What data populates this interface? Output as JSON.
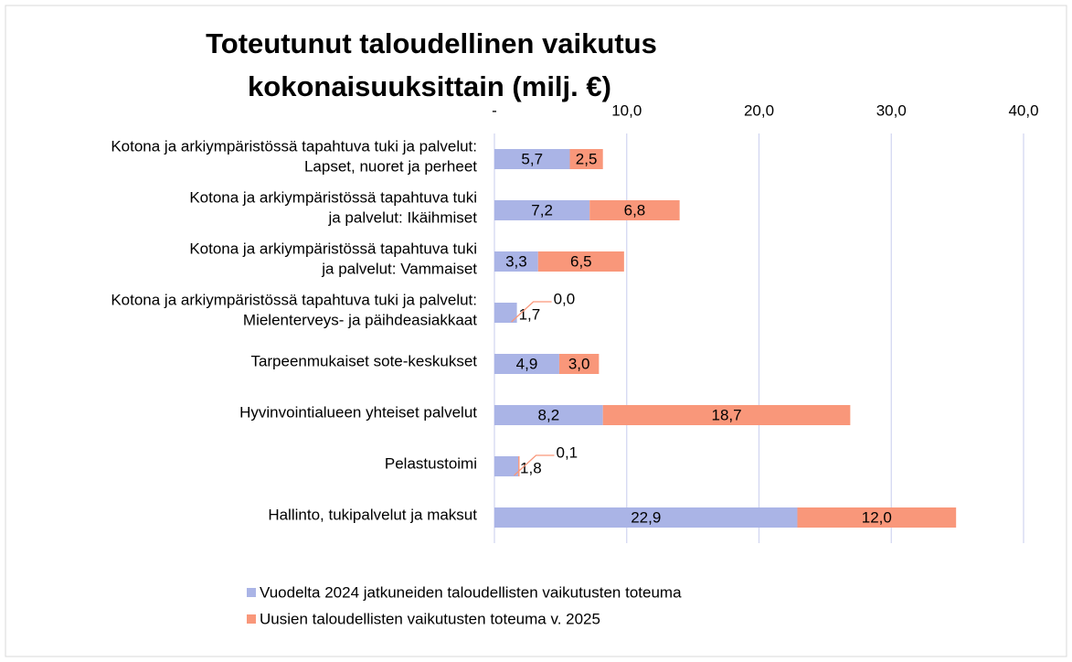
{
  "chart_data": {
    "type": "stacked_barh",
    "title": [
      "Toteutunut taloudellinen vaikutus",
      "kokonaisuuksittain (milj. €)"
    ],
    "categories": [
      [
        "Kotona ja arkiympäristössä tapahtuva tuki ja palvelut:",
        "Lapset, nuoret ja perheet"
      ],
      [
        "Kotona ja arkiympäristössä tapahtuva tuki",
        "ja palvelut: Ikäihmiset"
      ],
      [
        "Kotona ja arkiympäristössä tapahtuva tuki",
        "ja palvelut: Vammaiset"
      ],
      [
        "Kotona ja arkiympäristössä tapahtuva tuki ja palvelut:",
        "Mielenterveys- ja päihdeasiakkaat"
      ],
      [
        "Tarpeenmukaiset sote-keskukset"
      ],
      [
        "Hyvinvointialueen yhteiset palvelut"
      ],
      [
        "Pelastustoimi"
      ],
      [
        "Hallinto, tukipalvelut ja maksut"
      ]
    ],
    "series": [
      {
        "name": "Vuodelta 2024 jatkuneiden taloudellisten vaikutusten toteuma",
        "color": "#aab4e6",
        "values": [
          5.7,
          7.2,
          3.3,
          1.7,
          4.9,
          8.2,
          1.8,
          22.9
        ],
        "value_labels": [
          "5,7",
          "7,2",
          "3,3",
          "1,7",
          "4,9",
          "8,2",
          "1,8",
          "22,9"
        ]
      },
      {
        "name": "Uusien taloudellisten vaikutusten toteuma v. 2025",
        "color": "#f9977a",
        "values": [
          2.5,
          6.8,
          6.5,
          0.0,
          3.0,
          18.7,
          0.1,
          12.0
        ],
        "value_labels": [
          "2,5",
          "6,8",
          "6,5",
          "0,0",
          "3,0",
          "18,7",
          "0,1",
          "12,0"
        ]
      }
    ],
    "xlim": [
      0,
      40
    ],
    "xticks": [
      {
        "value": 0,
        "label": "-"
      },
      {
        "value": 10,
        "label": "10,0"
      },
      {
        "value": 20,
        "label": "20,0"
      },
      {
        "value": 30,
        "label": "30,0"
      },
      {
        "value": 40,
        "label": "40,0"
      }
    ],
    "grid": true,
    "legend": "bottom"
  }
}
